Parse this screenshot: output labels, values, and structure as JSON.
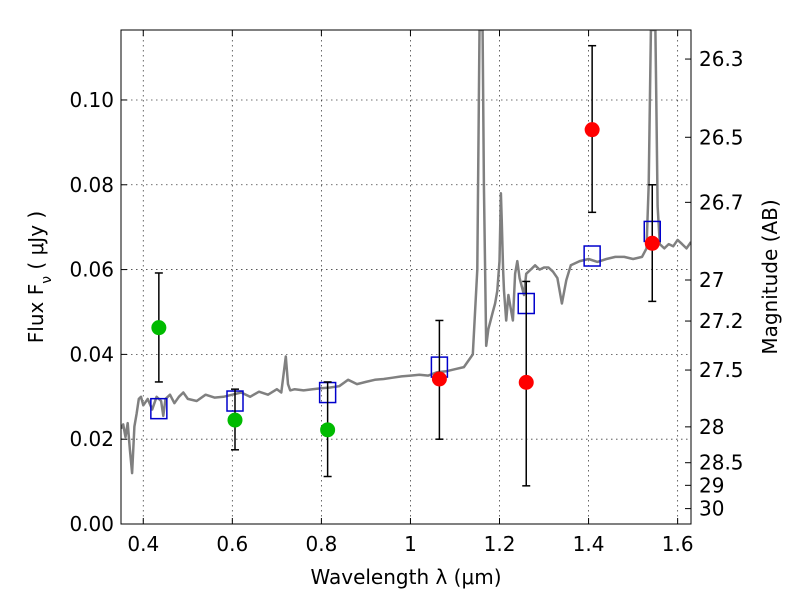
{
  "chart_data": {
    "type": "scatter",
    "title": "",
    "xlabel": "Wavelength  λ (μm)",
    "ylabel": "Flux  F",
    "ylabel_sub": "ν",
    "ylabel_unit": "  ( μJy )",
    "ylabel_right": "Magnitude (AB)",
    "xlim": [
      0.35,
      1.63
    ],
    "ylim": [
      0.0,
      0.1165
    ],
    "grid": true,
    "x_ticks": [
      0.4,
      0.6,
      0.8,
      1.0,
      1.2,
      1.4,
      1.6
    ],
    "x_tick_labels": [
      "0.4",
      "0.6",
      "0.8",
      "1",
      "1.2",
      "1.4",
      "1.6"
    ],
    "y_ticks": [
      0.0,
      0.02,
      0.04,
      0.06,
      0.08,
      0.1
    ],
    "y_tick_labels": [
      "0.00",
      "0.02",
      "0.04",
      "0.06",
      "0.08",
      "0.10"
    ],
    "right_ticks": [
      26.3,
      26.5,
      26.7,
      27.0,
      27.2,
      27.5,
      28.0,
      28.5,
      29.0,
      30.0
    ],
    "right_tick_labels": [
      "26.3",
      "26.5",
      "26.7",
      "27",
      "27.2",
      "27.5",
      "28",
      "28.5",
      "29",
      "30"
    ],
    "colors": {
      "spectrum": "#808080",
      "green": "#00bb00",
      "red": "#ff0000",
      "model_box": "#0000cc",
      "errorbar": "#000000"
    },
    "series": [
      {
        "marker": "circle",
        "color": "green",
        "points": [
          {
            "x": 0.435,
            "y": 0.0463,
            "lo": 0.0335,
            "hi": 0.0592
          },
          {
            "x": 0.606,
            "y": 0.0245,
            "lo": 0.0175,
            "hi": 0.0318
          },
          {
            "x": 0.814,
            "y": 0.0222,
            "lo": 0.0112,
            "hi": 0.0335
          }
        ]
      },
      {
        "marker": "circle",
        "color": "red",
        "points": [
          {
            "x": 1.065,
            "y": 0.0342,
            "lo": 0.02,
            "hi": 0.048
          },
          {
            "x": 1.26,
            "y": 0.0334,
            "lo": 0.009,
            "hi": 0.0572
          },
          {
            "x": 1.408,
            "y": 0.093,
            "lo": 0.0735,
            "hi": 0.1128
          },
          {
            "x": 1.543,
            "y": 0.0662,
            "lo": 0.0525,
            "hi": 0.08
          }
        ]
      },
      {
        "marker": "square",
        "color": "model_box",
        "points": [
          {
            "x": 0.435,
            "y": 0.0272
          },
          {
            "x": 0.606,
            "y": 0.029
          },
          {
            "x": 0.814,
            "y": 0.031
          },
          {
            "x": 1.065,
            "y": 0.037
          },
          {
            "x": 1.26,
            "y": 0.052
          },
          {
            "x": 1.408,
            "y": 0.0632
          },
          {
            "x": 1.543,
            "y": 0.069
          }
        ]
      }
    ],
    "spectrum": {
      "x": [
        0.35,
        0.355,
        0.36,
        0.365,
        0.37,
        0.375,
        0.38,
        0.385,
        0.39,
        0.395,
        0.4,
        0.41,
        0.42,
        0.43,
        0.44,
        0.445,
        0.45,
        0.46,
        0.47,
        0.48,
        0.49,
        0.5,
        0.52,
        0.54,
        0.56,
        0.58,
        0.6,
        0.62,
        0.64,
        0.66,
        0.68,
        0.7,
        0.71,
        0.72,
        0.725,
        0.73,
        0.74,
        0.76,
        0.78,
        0.8,
        0.82,
        0.84,
        0.86,
        0.88,
        0.9,
        0.92,
        0.94,
        0.96,
        0.98,
        1.0,
        1.02,
        1.04,
        1.06,
        1.08,
        1.1,
        1.12,
        1.14,
        1.15,
        1.155,
        1.158,
        1.16,
        1.162,
        1.165,
        1.17,
        1.175,
        1.18,
        1.185,
        1.19,
        1.195,
        1.2,
        1.203,
        1.205,
        1.208,
        1.21,
        1.215,
        1.22,
        1.225,
        1.23,
        1.235,
        1.24,
        1.245,
        1.25,
        1.255,
        1.26,
        1.27,
        1.28,
        1.29,
        1.3,
        1.31,
        1.32,
        1.33,
        1.34,
        1.35,
        1.36,
        1.38,
        1.4,
        1.42,
        1.44,
        1.46,
        1.48,
        1.5,
        1.52,
        1.53,
        1.535,
        1.54,
        1.545,
        1.548,
        1.55,
        1.552,
        1.555,
        1.56,
        1.57,
        1.58,
        1.59,
        1.6,
        1.61,
        1.62,
        1.63
      ],
      "y": [
        0.0225,
        0.0235,
        0.0205,
        0.0238,
        0.0175,
        0.012,
        0.023,
        0.026,
        0.0295,
        0.03,
        0.028,
        0.0295,
        0.027,
        0.03,
        0.029,
        0.0255,
        0.0295,
        0.0305,
        0.0285,
        0.03,
        0.031,
        0.0295,
        0.029,
        0.0305,
        0.0298,
        0.03,
        0.0305,
        0.031,
        0.03,
        0.0312,
        0.0305,
        0.0318,
        0.031,
        0.0395,
        0.033,
        0.0315,
        0.0318,
        0.0315,
        0.0318,
        0.032,
        0.0322,
        0.0325,
        0.034,
        0.033,
        0.0335,
        0.034,
        0.0342,
        0.0345,
        0.0348,
        0.035,
        0.0352,
        0.035,
        0.0358,
        0.036,
        0.0365,
        0.037,
        0.04,
        0.06,
        0.1165,
        0.1165,
        0.1165,
        0.1165,
        0.08,
        0.042,
        0.046,
        0.048,
        0.05,
        0.052,
        0.055,
        0.062,
        0.078,
        0.072,
        0.06,
        0.055,
        0.048,
        0.054,
        0.051,
        0.048,
        0.059,
        0.062,
        0.058,
        0.056,
        0.054,
        0.059,
        0.06,
        0.061,
        0.06,
        0.0605,
        0.0605,
        0.0595,
        0.058,
        0.052,
        0.0575,
        0.061,
        0.062,
        0.0625,
        0.0618,
        0.0625,
        0.063,
        0.063,
        0.0625,
        0.063,
        0.065,
        0.08,
        0.1165,
        0.1165,
        0.1165,
        0.1165,
        0.1,
        0.075,
        0.066,
        0.065,
        0.066,
        0.0655,
        0.067,
        0.066,
        0.065,
        0.0665
      ]
    }
  }
}
